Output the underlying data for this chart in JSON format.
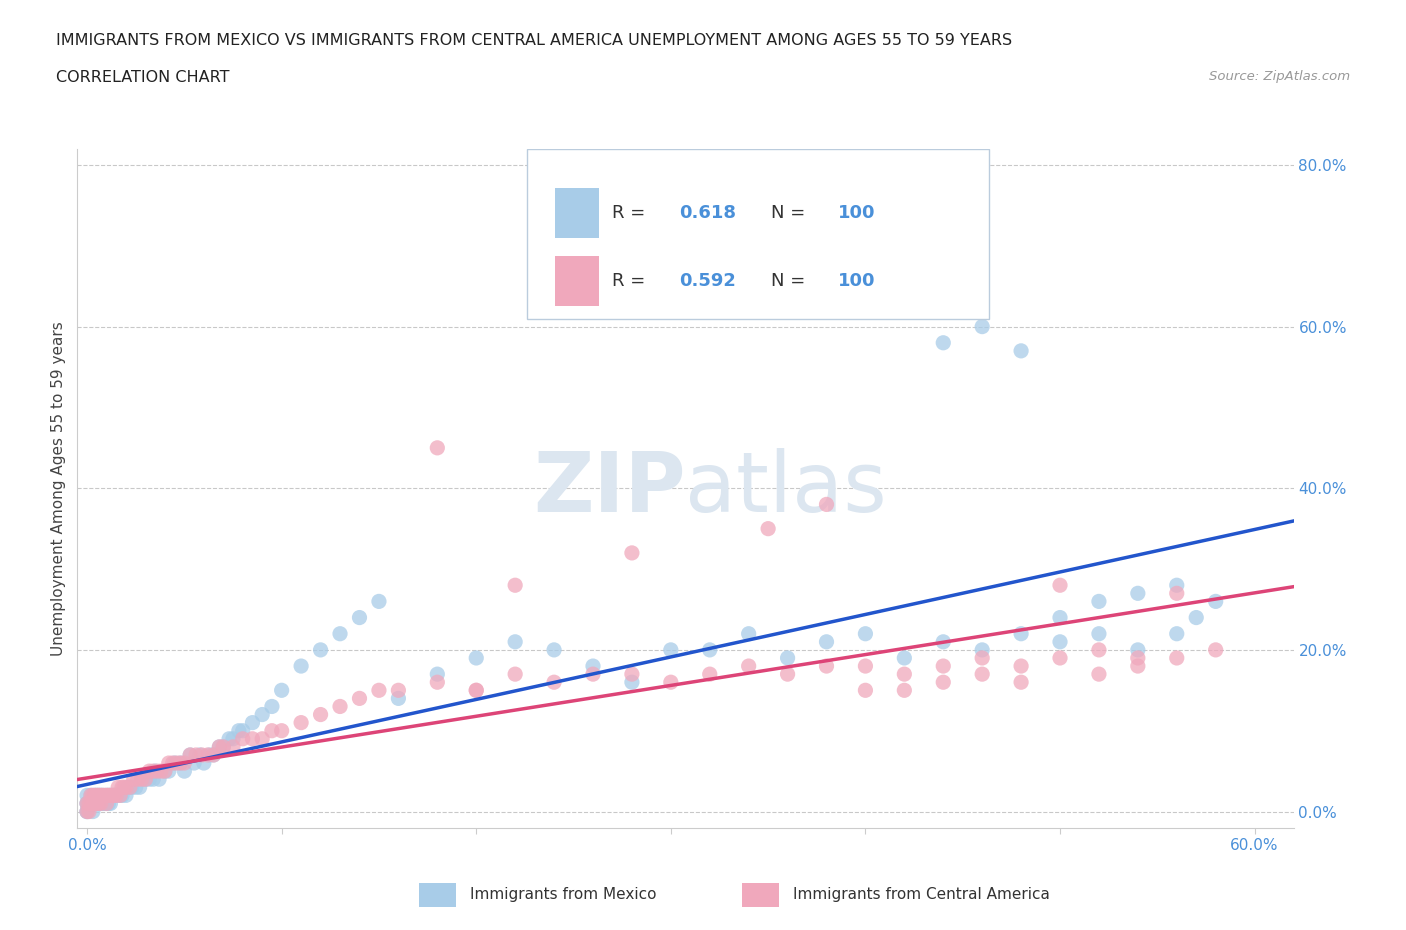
{
  "title_line1": "IMMIGRANTS FROM MEXICO VS IMMIGRANTS FROM CENTRAL AMERICA UNEMPLOYMENT AMONG AGES 55 TO 59 YEARS",
  "title_line2": "CORRELATION CHART",
  "source_text": "Source: ZipAtlas.com",
  "ylabel_text": "Unemployment Among Ages 55 to 59 years",
  "xlim": [
    -0.005,
    0.62
  ],
  "ylim": [
    -0.02,
    0.82
  ],
  "R_mexico": 0.618,
  "N_mexico": 100,
  "R_central": 0.592,
  "N_central": 100,
  "color_mexico": "#a8cce8",
  "color_central": "#f0a8bc",
  "line_color_mexico": "#2255cc",
  "line_color_central": "#dd4477",
  "watermark_color": "#dce6f0",
  "tick_color": "#4a90d9",
  "mexico_x": [
    0.0,
    0.0,
    0.0,
    0.0,
    0.0,
    0.002,
    0.002,
    0.003,
    0.003,
    0.004,
    0.004,
    0.005,
    0.005,
    0.006,
    0.006,
    0.007,
    0.007,
    0.008,
    0.008,
    0.009,
    0.01,
    0.01,
    0.011,
    0.011,
    0.012,
    0.012,
    0.013,
    0.014,
    0.015,
    0.016,
    0.017,
    0.018,
    0.02,
    0.021,
    0.022,
    0.023,
    0.025,
    0.027,
    0.028,
    0.03,
    0.032,
    0.034,
    0.035,
    0.037,
    0.04,
    0.042,
    0.045,
    0.048,
    0.05,
    0.053,
    0.055,
    0.058,
    0.06,
    0.063,
    0.065,
    0.068,
    0.07,
    0.073,
    0.075,
    0.078,
    0.08,
    0.085,
    0.09,
    0.095,
    0.1,
    0.11,
    0.12,
    0.13,
    0.14,
    0.15,
    0.16,
    0.18,
    0.2,
    0.22,
    0.24,
    0.26,
    0.28,
    0.3,
    0.32,
    0.34,
    0.36,
    0.38,
    0.4,
    0.42,
    0.44,
    0.46,
    0.48,
    0.5,
    0.52,
    0.54,
    0.44,
    0.46,
    0.48,
    0.5,
    0.52,
    0.54,
    0.56,
    0.56,
    0.57,
    0.58
  ],
  "mexico_y": [
    0.0,
    0.01,
    0.02,
    0.0,
    0.01,
    0.01,
    0.02,
    0.0,
    0.01,
    0.01,
    0.02,
    0.01,
    0.02,
    0.01,
    0.02,
    0.01,
    0.02,
    0.01,
    0.02,
    0.01,
    0.01,
    0.02,
    0.01,
    0.02,
    0.01,
    0.02,
    0.02,
    0.02,
    0.02,
    0.02,
    0.02,
    0.02,
    0.02,
    0.03,
    0.03,
    0.03,
    0.03,
    0.03,
    0.04,
    0.04,
    0.04,
    0.04,
    0.05,
    0.04,
    0.05,
    0.05,
    0.06,
    0.06,
    0.05,
    0.07,
    0.06,
    0.07,
    0.06,
    0.07,
    0.07,
    0.08,
    0.08,
    0.09,
    0.09,
    0.1,
    0.1,
    0.11,
    0.12,
    0.13,
    0.15,
    0.18,
    0.2,
    0.22,
    0.24,
    0.26,
    0.14,
    0.17,
    0.19,
    0.21,
    0.2,
    0.18,
    0.16,
    0.2,
    0.2,
    0.22,
    0.19,
    0.21,
    0.22,
    0.19,
    0.21,
    0.2,
    0.22,
    0.21,
    0.22,
    0.2,
    0.58,
    0.6,
    0.57,
    0.24,
    0.26,
    0.27,
    0.28,
    0.22,
    0.24,
    0.26
  ],
  "central_x": [
    0.0,
    0.0,
    0.001,
    0.001,
    0.002,
    0.002,
    0.003,
    0.003,
    0.004,
    0.004,
    0.005,
    0.005,
    0.006,
    0.006,
    0.007,
    0.007,
    0.008,
    0.009,
    0.01,
    0.01,
    0.011,
    0.012,
    0.013,
    0.014,
    0.015,
    0.016,
    0.017,
    0.018,
    0.019,
    0.02,
    0.022,
    0.024,
    0.026,
    0.028,
    0.03,
    0.032,
    0.034,
    0.036,
    0.038,
    0.04,
    0.042,
    0.044,
    0.046,
    0.048,
    0.05,
    0.053,
    0.056,
    0.059,
    0.062,
    0.065,
    0.068,
    0.07,
    0.075,
    0.08,
    0.085,
    0.09,
    0.095,
    0.1,
    0.11,
    0.12,
    0.13,
    0.14,
    0.15,
    0.16,
    0.18,
    0.2,
    0.22,
    0.24,
    0.26,
    0.28,
    0.3,
    0.32,
    0.34,
    0.36,
    0.38,
    0.4,
    0.42,
    0.44,
    0.46,
    0.48,
    0.5,
    0.52,
    0.54,
    0.56,
    0.58,
    0.38,
    0.4,
    0.28,
    0.35,
    0.42,
    0.18,
    0.2,
    0.22,
    0.44,
    0.46,
    0.48,
    0.5,
    0.52,
    0.54,
    0.56
  ],
  "central_y": [
    0.0,
    0.01,
    0.0,
    0.01,
    0.01,
    0.02,
    0.01,
    0.02,
    0.01,
    0.02,
    0.01,
    0.02,
    0.01,
    0.02,
    0.01,
    0.02,
    0.02,
    0.02,
    0.01,
    0.02,
    0.02,
    0.02,
    0.02,
    0.02,
    0.02,
    0.03,
    0.02,
    0.03,
    0.03,
    0.03,
    0.03,
    0.04,
    0.04,
    0.04,
    0.04,
    0.05,
    0.05,
    0.05,
    0.05,
    0.05,
    0.06,
    0.06,
    0.06,
    0.06,
    0.06,
    0.07,
    0.07,
    0.07,
    0.07,
    0.07,
    0.08,
    0.08,
    0.08,
    0.09,
    0.09,
    0.09,
    0.1,
    0.1,
    0.11,
    0.12,
    0.13,
    0.14,
    0.15,
    0.15,
    0.16,
    0.15,
    0.17,
    0.16,
    0.17,
    0.17,
    0.16,
    0.17,
    0.18,
    0.17,
    0.18,
    0.18,
    0.17,
    0.18,
    0.19,
    0.18,
    0.19,
    0.2,
    0.19,
    0.19,
    0.2,
    0.38,
    0.15,
    0.32,
    0.35,
    0.15,
    0.45,
    0.15,
    0.28,
    0.16,
    0.17,
    0.16,
    0.28,
    0.17,
    0.18,
    0.27
  ]
}
